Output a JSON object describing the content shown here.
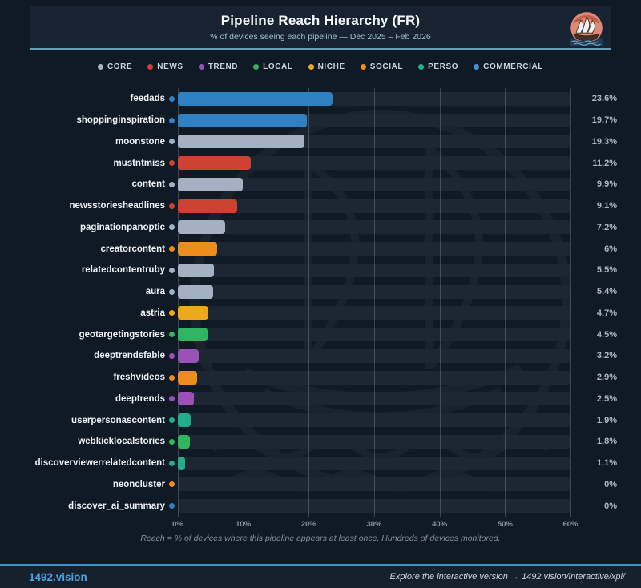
{
  "header": {
    "title": "Pipeline Reach Hierarchy (FR)",
    "subtitle": "% of devices seeing each pipeline — Dec 2025 – Feb 2026"
  },
  "legend": [
    {
      "label": "CORE",
      "color": "#a4b1c3"
    },
    {
      "label": "NEWS",
      "color": "#cd4232"
    },
    {
      "label": "TREND",
      "color": "#9b51b8"
    },
    {
      "label": "LOCAL",
      "color": "#31b561"
    },
    {
      "label": "NICHE",
      "color": "#efa71f"
    },
    {
      "label": "SOCIAL",
      "color": "#ee8d1e"
    },
    {
      "label": "PERSO",
      "color": "#23ae8a"
    },
    {
      "label": "COMMERCIAL",
      "color": "#3c93d2"
    }
  ],
  "chart_data": {
    "type": "bar",
    "orientation": "horizontal",
    "title": "Pipeline Reach Hierarchy (FR)",
    "subtitle": "% of devices seeing each pipeline — Dec 2025 – Feb 2026",
    "xlabel": "",
    "ylabel": "",
    "xlim": [
      0,
      60
    ],
    "x_ticks": [
      "0%",
      "10%",
      "20%",
      "30%",
      "40%",
      "50%",
      "60%"
    ],
    "grid": "vertical",
    "legend_position": "top",
    "palette": {
      "CORE": "#a4b1c3",
      "NEWS": "#cd4232",
      "TREND": "#9b51b8",
      "LOCAL": "#31b561",
      "NICHE": "#efa71f",
      "SOCIAL": "#ee8d1e",
      "PERSO": "#23ae8a",
      "COMMERCIAL": "#2e82c4"
    },
    "rows": [
      {
        "label": "feedads",
        "category": "COMMERCIAL",
        "value": 23.6,
        "display": "23.6%"
      },
      {
        "label": "shoppinginspiration",
        "category": "COMMERCIAL",
        "value": 19.7,
        "display": "19.7%"
      },
      {
        "label": "moonstone",
        "category": "CORE",
        "value": 19.3,
        "display": "19.3%"
      },
      {
        "label": "mustntmiss",
        "category": "NEWS",
        "value": 11.2,
        "display": "11.2%"
      },
      {
        "label": "content",
        "category": "CORE",
        "value": 9.9,
        "display": "9.9%"
      },
      {
        "label": "newsstoriesheadlines",
        "category": "NEWS",
        "value": 9.1,
        "display": "9.1%"
      },
      {
        "label": "paginationpanoptic",
        "category": "CORE",
        "value": 7.2,
        "display": "7.2%"
      },
      {
        "label": "creatorcontent",
        "category": "SOCIAL",
        "value": 6,
        "display": "6%"
      },
      {
        "label": "relatedcontentruby",
        "category": "CORE",
        "value": 5.5,
        "display": "5.5%"
      },
      {
        "label": "aura",
        "category": "CORE",
        "value": 5.4,
        "display": "5.4%"
      },
      {
        "label": "astria",
        "category": "NICHE",
        "value": 4.7,
        "display": "4.7%"
      },
      {
        "label": "geotargetingstories",
        "category": "LOCAL",
        "value": 4.5,
        "display": "4.5%"
      },
      {
        "label": "deeptrendsfable",
        "category": "TREND",
        "value": 3.2,
        "display": "3.2%"
      },
      {
        "label": "freshvideos",
        "category": "SOCIAL",
        "value": 2.9,
        "display": "2.9%"
      },
      {
        "label": "deeptrends",
        "category": "TREND",
        "value": 2.5,
        "display": "2.5%"
      },
      {
        "label": "userpersonascontent",
        "category": "PERSO",
        "value": 1.9,
        "display": "1.9%"
      },
      {
        "label": "webkicklocalstories",
        "category": "LOCAL",
        "value": 1.8,
        "display": "1.8%"
      },
      {
        "label": "discoverviewerrelatedcontent",
        "category": "PERSO",
        "value": 1.1,
        "display": "1.1%"
      },
      {
        "label": "neoncluster",
        "category": "SOCIAL",
        "value": 0,
        "display": "0%"
      },
      {
        "label": "discover_ai_summary",
        "category": "COMMERCIAL",
        "value": 0,
        "display": "0%"
      }
    ],
    "footnote": "Reach = % of devices where this pipeline appears at least once. Hundreds of devices monitored."
  },
  "footer": {
    "brand": "1492.vision",
    "cta": "Explore the interactive version → 1492.vision/interactive/xpl/"
  }
}
